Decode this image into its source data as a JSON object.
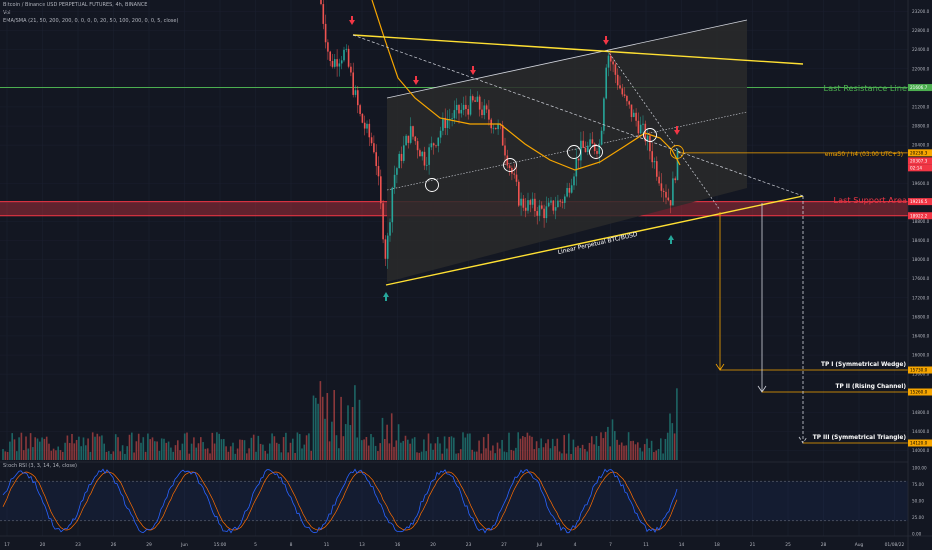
{
  "header": {
    "symbol_line": "Bitcoin / Binance USD PERPETUAL FUTURES, 4h, BINANCE",
    "vol_line": "Vol",
    "ma_line": "EMA/SMA (21, 50, 200, 200, 0, 0, 0, 0, 20, 50, 100, 200, 0, 0, 5, close)"
  },
  "stoch": {
    "label": "Stoch RSI (3, 3, 14, 14, close)"
  },
  "colors": {
    "background": "#131722",
    "up": "#26a69a",
    "down": "#ef5350",
    "resistance": "#4caf50",
    "support": "#f23645",
    "ema": "#f7a600",
    "wedge": "#ffe033",
    "channel_fill": "#2a2a2a",
    "stoch_k": "#2962ff",
    "stoch_d": "#ff6d00"
  },
  "chart_data": {
    "type": "candlestick",
    "price_scale": {
      "min": 13800,
      "max": 23400,
      "ticks": [
        23200,
        22800,
        22400,
        22000,
        21600,
        21200,
        20800,
        20400,
        19600,
        19200,
        18800,
        18400,
        18000,
        17600,
        17200,
        16800,
        16400,
        16000,
        15600,
        14800,
        14400,
        14000
      ]
    },
    "time_axis": [
      "17",
      "20",
      "23",
      "26",
      "29",
      "Jun",
      "15:00",
      "5",
      "8",
      "11",
      "13",
      "16",
      "20",
      "23",
      "27",
      "Jul",
      "4",
      "7",
      "11",
      "14",
      "18",
      "21",
      "25",
      "28",
      "Aug",
      "01/08/22"
    ],
    "levels": [
      {
        "name": "Last Resistance Line",
        "price": 21606.7,
        "tag": "21606.7"
      },
      {
        "name": "Last Support Area",
        "price": 19216,
        "low": 18920,
        "tag": "19216.5",
        "tag2": "18922.2"
      },
      {
        "name": "ema50 / h4 (03:00 UTC+3)",
        "price": 20238.3,
        "tag": "20238.3"
      }
    ],
    "price_tags": [
      "20307.3",
      "02:14"
    ],
    "channel_label": "Linear Perpetual BTC/BUSD",
    "targets": [
      {
        "name": "TP I (Symmetrical Wedge)",
        "price": 15730,
        "tag": "15730.0"
      },
      {
        "name": "TP II (Rising Channel)",
        "price": 15260,
        "tag": "15260.0"
      },
      {
        "name": "TP III (Symmetrical Triangle)",
        "price": 14120,
        "tag": "14120.0"
      }
    ],
    "stoch_scale": [
      100,
      75,
      50,
      25,
      0
    ],
    "stoch_ticks": [
      "100.00",
      "75.00",
      "50.00",
      "25.00",
      "0.00"
    ]
  }
}
